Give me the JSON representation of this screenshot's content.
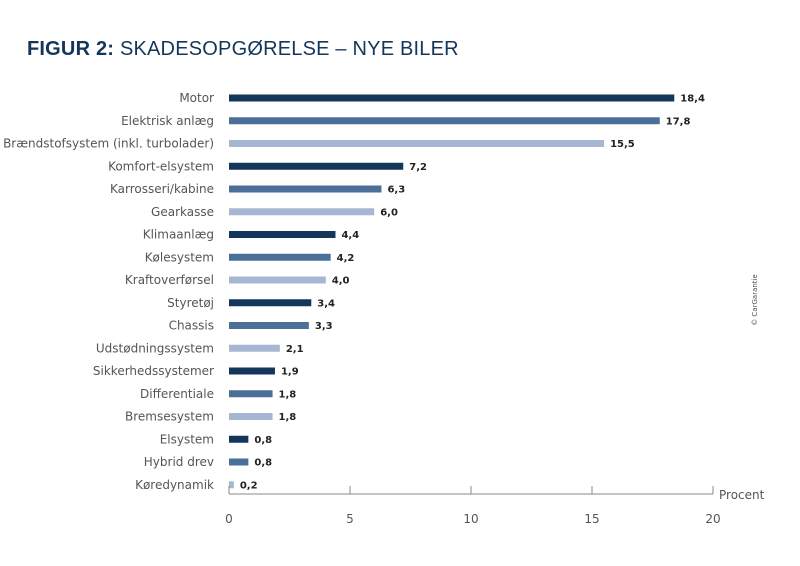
{
  "title": {
    "bold": "FIGUR 2:",
    "rest": "SKADESOPGØRELSE – NYE BILER"
  },
  "copyright": "© CarGarantie",
  "colors": {
    "dark": "#14365a",
    "mid": "#4a7099",
    "light": "#a5b7d2",
    "title": "#14365a"
  },
  "chart_data": {
    "type": "bar",
    "orientation": "horizontal",
    "categories": [
      "Motor",
      "Elektrisk anlæg",
      "Brændstofsystem (inkl. turbolader)",
      "Komfort-elsystem",
      "Karrosseri/kabine",
      "Gearkasse",
      "Klimaanlæg",
      "Kølesystem",
      "Kraftoverførsel",
      "Styretøj",
      "Chassis",
      "Udstødningssystem",
      "Sikkerhedssystemer",
      "Differentiale",
      "Bremsesystem",
      "Elsystem",
      "Hybrid drev",
      "Køredynamik"
    ],
    "values": [
      18.4,
      17.8,
      15.5,
      7.2,
      6.3,
      6.0,
      4.4,
      4.2,
      4.0,
      3.4,
      3.3,
      2.1,
      1.9,
      1.8,
      1.8,
      0.8,
      0.8,
      0.2
    ],
    "value_labels": [
      "18,4",
      "17,8",
      "15,5",
      "7,2",
      "6,3",
      "6,0",
      "4,4",
      "4,2",
      "4,0",
      "3,4",
      "3,3",
      "2,1",
      "1,9",
      "1,8",
      "1,8",
      "0,8",
      "0,8",
      "0,2"
    ],
    "bar_color_cycle": [
      "dark",
      "mid",
      "light"
    ],
    "xlabel": "Procent",
    "xlim": [
      0,
      20
    ],
    "xticks": [
      0,
      5,
      10,
      15,
      20
    ],
    "xtick_labels": [
      "0",
      "5",
      "10",
      "15",
      "20"
    ],
    "grid": false
  }
}
